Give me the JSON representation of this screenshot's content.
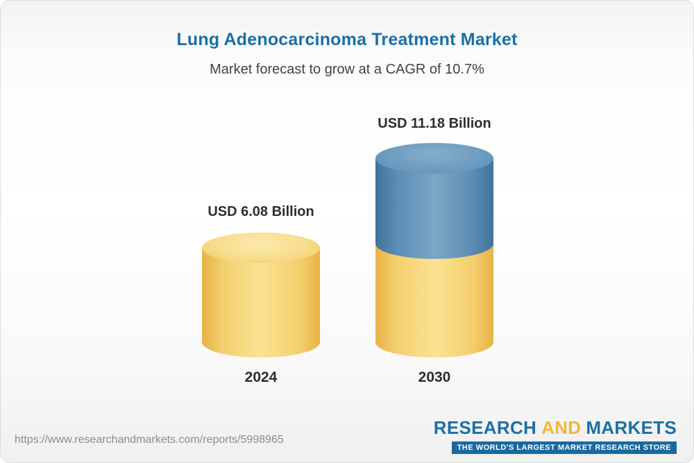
{
  "header": {
    "title": "Lung Adenocarcinoma Treatment Market",
    "subtitle": "Market forecast to grow at a CAGR of 10.7%"
  },
  "chart_data": {
    "type": "bar",
    "categories": [
      "2024",
      "2030"
    ],
    "values": [
      6.08,
      11.18
    ],
    "unit": "USD Billion",
    "labels": [
      "USD 6.08 Billion",
      "USD 11.18 Billion"
    ],
    "title": "Lung Adenocarcinoma Treatment Market",
    "subtitle": "Market forecast to grow at a CAGR of 10.7%",
    "cagr": "10.7%",
    "grid": false,
    "legend": "none",
    "colors": {
      "base_segment": "#F4CF6E",
      "growth_segment": "#5E8FB5",
      "title": "#1A6FA8",
      "label_text": "#2D2D2D"
    }
  },
  "footer": {
    "url": "https://www.researchandmarkets.com/reports/5998965",
    "logo": {
      "research": "RESEARCH",
      "and": "AND",
      "markets": "MARKETS",
      "tagline": "THE WORLD'S LARGEST MARKET RESEARCH STORE"
    }
  }
}
